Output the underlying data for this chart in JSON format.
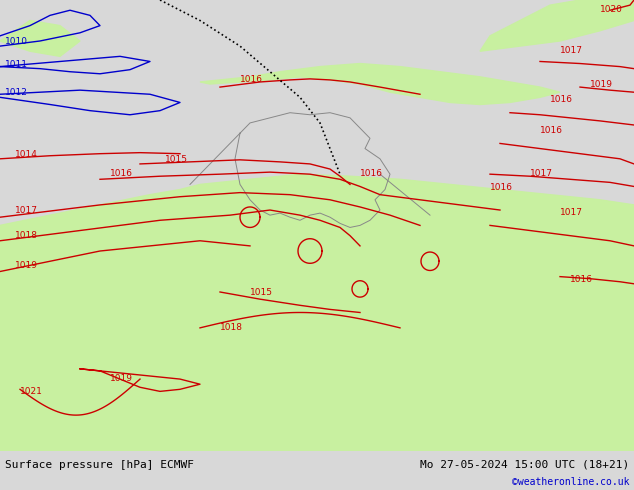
{
  "title_left": "Surface pressure [hPa] ECMWF",
  "title_right": "Mo 27-05-2024 15:00 UTC (18+21)",
  "watermark": "©weatheronline.co.uk",
  "background_color": "#d8d8d8",
  "green_color": "#c8f0a0",
  "fig_width": 6.34,
  "fig_height": 4.9,
  "dpi": 100,
  "bottom_bar_color": "#f0f0f0",
  "bottom_bar_height": 0.08,
  "label_fontsize": 8,
  "watermark_color": "#0000cc",
  "watermark_fontsize": 7,
  "red_line_color": "#cc0000",
  "blue_line_color": "#0000cc",
  "black_line_color": "#000000",
  "gray_line_color": "#888888",
  "isobar_labels_red": [
    "1010",
    "1011",
    "1012",
    "1014",
    "1015",
    "1016",
    "1017",
    "1018",
    "1019",
    "1021",
    "1015",
    "1016",
    "1016",
    "1016",
    "1015",
    "1016",
    "1017",
    "1018",
    "1017",
    "1018",
    "1017",
    "1016",
    "1015",
    "1016",
    "1017",
    "1018",
    "1020"
  ],
  "isobar_labels_blue": [
    "1010",
    "1011",
    "1012"
  ]
}
